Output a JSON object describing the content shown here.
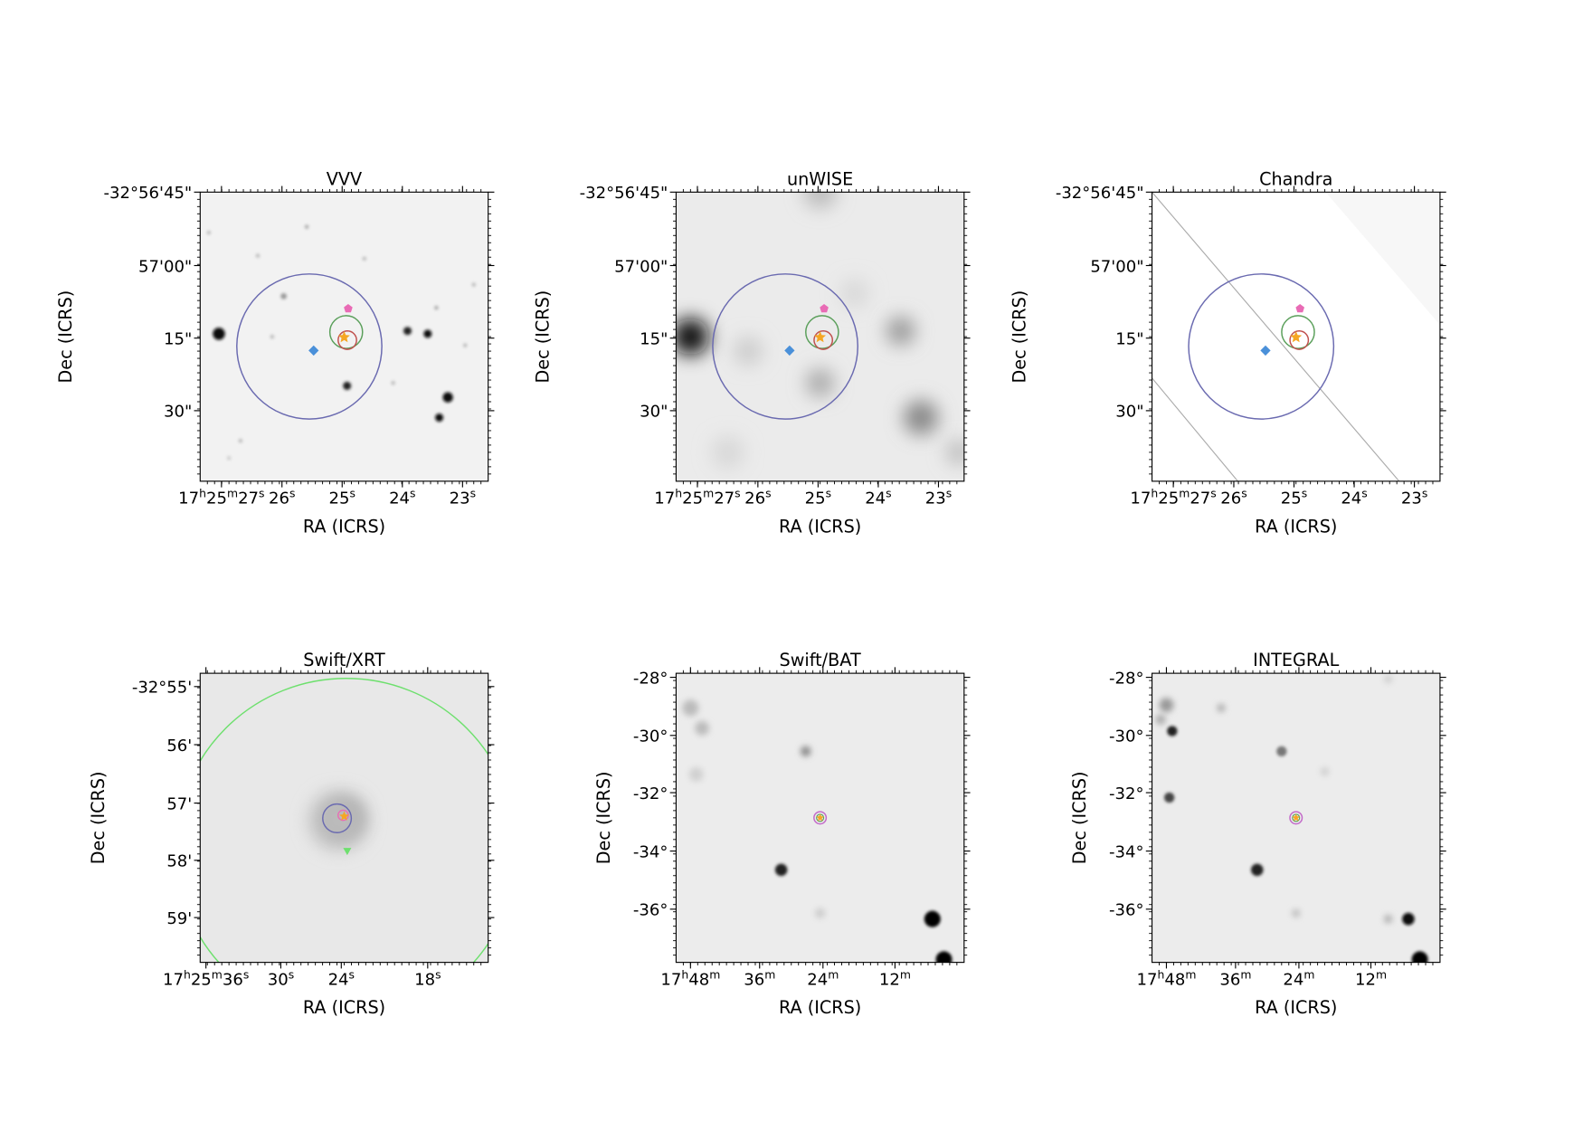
{
  "panels": [
    {
      "title": "VVV",
      "x_label": "RA (ICRS)",
      "y_label": "Dec (ICRS)",
      "x_ticks": [
        "17h25m27s",
        "26s",
        "25s",
        "24s",
        "23s"
      ],
      "y_ticks": [
        "-32°56'45\"",
        "57'00\"",
        "15\"",
        "30\""
      ]
    },
    {
      "title": "unWISE",
      "x_label": "RA (ICRS)",
      "y_label": "Dec (ICRS)",
      "x_ticks": [
        "17h25m27s",
        "26s",
        "25s",
        "24s",
        "23s"
      ],
      "y_ticks": [
        "-32°56'45\"",
        "57'00\"",
        "15\"",
        "30\""
      ]
    },
    {
      "title": "Chandra",
      "x_label": "RA (ICRS)",
      "y_label": "Dec (ICRS)",
      "x_ticks": [
        "17h25m27s",
        "26s",
        "25s",
        "24s",
        "23s"
      ],
      "y_ticks": [
        "-32°56'45\"",
        "57'00\"",
        "15\"",
        "30\""
      ]
    },
    {
      "title": "Swift/XRT",
      "x_label": "RA (ICRS)",
      "y_label": "Dec (ICRS)",
      "x_ticks": [
        "17h25m36s",
        "30s",
        "24s",
        "18s"
      ],
      "y_ticks": [
        "-32°55'",
        "56'",
        "57'",
        "58'",
        "59'"
      ]
    },
    {
      "title": "Swift/BAT",
      "x_label": "RA (ICRS)",
      "y_label": "Dec (ICRS)",
      "x_ticks": [
        "17h48m",
        "36m",
        "24m",
        "12m"
      ],
      "y_ticks": [
        "-28°",
        "-30°",
        "-32°",
        "-34°",
        "-36°"
      ]
    },
    {
      "title": "INTEGRAL",
      "x_label": "RA (ICRS)",
      "y_label": "Dec (ICRS)",
      "x_ticks": [
        "17h48m",
        "36m",
        "24m",
        "12m"
      ],
      "y_ticks": [
        "-28°",
        "-30°",
        "-32°",
        "-34°",
        "-36°"
      ]
    }
  ]
}
